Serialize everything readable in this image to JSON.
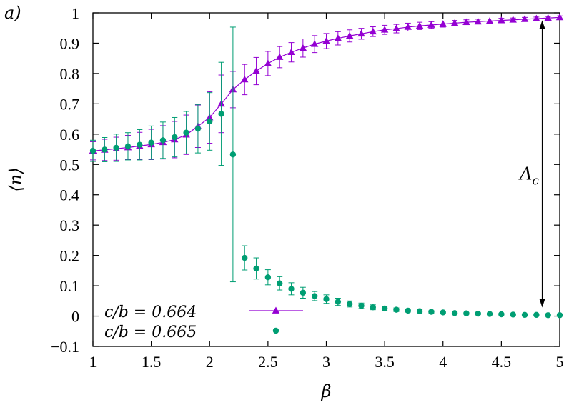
{
  "chart_data": {
    "type": "scatter",
    "panel_label": "a)",
    "xlabel": "β",
    "ylabel": "⟨n⟩",
    "xlim": [
      1,
      5
    ],
    "ylim": [
      -0.1,
      1
    ],
    "xticks": [
      1,
      1.5,
      2,
      2.5,
      3,
      3.5,
      4,
      4.5,
      5
    ],
    "xtick_labels": [
      "1",
      "1.5",
      "2",
      "2.5",
      "3",
      "3.5",
      "4",
      "4.5",
      "5"
    ],
    "yticks": [
      -0.1,
      0,
      0.1,
      0.2,
      0.3,
      0.4,
      0.5,
      0.6,
      0.7,
      0.8,
      0.9,
      1
    ],
    "ytick_labels": [
      "−0.1",
      "0",
      "0.1",
      "0.2",
      "0.3",
      "0.4",
      "0.5",
      "0.6",
      "0.7",
      "0.8",
      "0.9",
      "1"
    ],
    "grid": false,
    "legend_position": "bottom-left",
    "annotation": {
      "label": "Λ",
      "subscript": "c",
      "x": 4.85,
      "y_from": 0.0,
      "y_to": 0.985
    },
    "series": [
      {
        "name": "c/b = 0.664",
        "color": "#9400d3",
        "marker": "triangle",
        "line": true,
        "x": [
          1.0,
          1.1,
          1.2,
          1.3,
          1.4,
          1.5,
          1.6,
          1.7,
          1.8,
          1.9,
          2.0,
          2.1,
          2.2,
          2.3,
          2.4,
          2.5,
          2.6,
          2.7,
          2.8,
          2.9,
          3.0,
          3.1,
          3.2,
          3.3,
          3.4,
          3.5,
          3.6,
          3.7,
          3.8,
          3.9,
          4.0,
          4.1,
          4.2,
          4.3,
          4.4,
          4.5,
          4.6,
          4.7,
          4.8,
          4.9,
          5.0
        ],
        "y": [
          0.545,
          0.548,
          0.552,
          0.556,
          0.561,
          0.566,
          0.573,
          0.582,
          0.598,
          0.626,
          0.655,
          0.7,
          0.747,
          0.78,
          0.808,
          0.833,
          0.854,
          0.87,
          0.884,
          0.897,
          0.907,
          0.916,
          0.924,
          0.931,
          0.938,
          0.944,
          0.948,
          0.953,
          0.957,
          0.96,
          0.963,
          0.966,
          0.969,
          0.971,
          0.973,
          0.975,
          0.977,
          0.979,
          0.981,
          0.983,
          0.985
        ],
        "err": [
          0.03,
          0.035,
          0.038,
          0.04,
          0.045,
          0.05,
          0.055,
          0.06,
          0.065,
          0.07,
          0.085,
          0.095,
          0.06,
          0.05,
          0.045,
          0.04,
          0.035,
          0.032,
          0.03,
          0.028,
          0.025,
          0.022,
          0.02,
          0.018,
          0.016,
          0.015,
          0.014,
          0.013,
          0.012,
          0.011,
          0.01,
          0.009,
          0.008,
          0.008,
          0.007,
          0.007,
          0.006,
          0.006,
          0.005,
          0.005,
          0.005
        ]
      },
      {
        "name": "c/b = 0.665",
        "color": "#009e73",
        "marker": "circle",
        "line": false,
        "x": [
          1.0,
          1.1,
          1.2,
          1.3,
          1.4,
          1.5,
          1.6,
          1.7,
          1.8,
          1.9,
          2.0,
          2.1,
          2.2,
          2.3,
          2.4,
          2.5,
          2.6,
          2.7,
          2.8,
          2.9,
          3.0,
          3.1,
          3.2,
          3.3,
          3.4,
          3.5,
          3.6,
          3.7,
          3.8,
          3.9,
          4.0,
          4.1,
          4.2,
          4.3,
          4.4,
          4.5,
          4.6,
          4.7,
          4.8,
          4.9,
          5.0
        ],
        "y": [
          0.545,
          0.549,
          0.555,
          0.56,
          0.565,
          0.572,
          0.58,
          0.59,
          0.605,
          0.618,
          0.642,
          0.667,
          0.533,
          0.192,
          0.157,
          0.128,
          0.108,
          0.09,
          0.077,
          0.066,
          0.056,
          0.047,
          0.04,
          0.034,
          0.029,
          0.025,
          0.021,
          0.018,
          0.016,
          0.014,
          0.012,
          0.01,
          0.009,
          0.008,
          0.007,
          0.006,
          0.005,
          0.004,
          0.004,
          0.003,
          0.003
        ],
        "err": [
          0.035,
          0.04,
          0.045,
          0.045,
          0.05,
          0.055,
          0.06,
          0.065,
          0.07,
          0.08,
          0.095,
          0.17,
          0.42,
          0.04,
          0.035,
          0.025,
          0.022,
          0.02,
          0.018,
          0.015,
          0.014,
          0.012,
          0.01,
          0.009,
          0.008,
          0.007,
          0.006,
          0.005,
          0.005,
          0.004,
          0.004,
          0.003,
          0.003,
          0.003,
          0.002,
          0.002,
          0.002,
          0.002,
          0.002,
          0.002,
          0.002
        ]
      }
    ]
  }
}
